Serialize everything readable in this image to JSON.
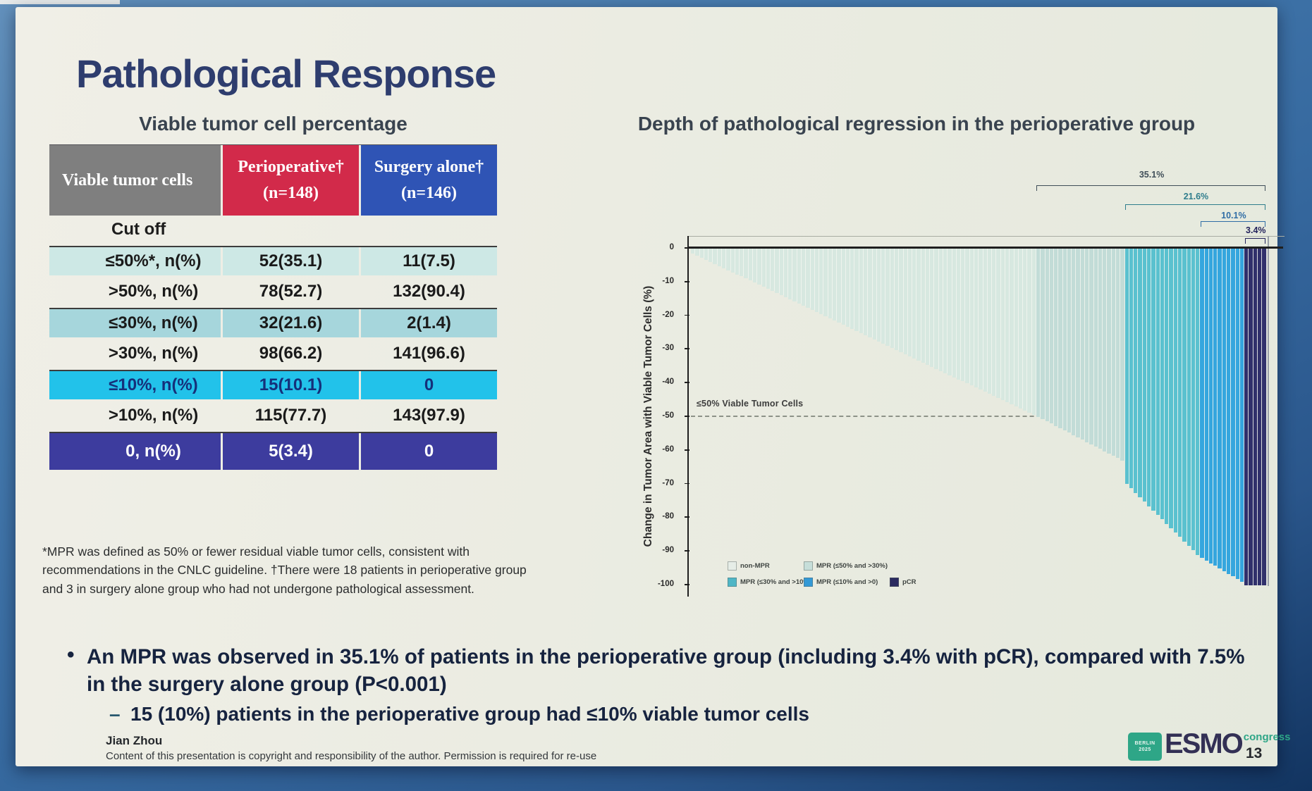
{
  "slide": {
    "title": "Pathological Response",
    "page_number": "13",
    "author": "Jian Zhou",
    "copyright_line": "Content of this presentation is copyright and responsibility of the author. Permission is required for re-use",
    "footnote": "*MPR was defined as 50% or fewer residual viable tumor cells, consistent with recommendations in the CNLC guideline. †There were 18 patients in perioperative group and 3 in surgery alone group who had not undergone pathological assessment.",
    "bullet_marker": "•",
    "sub_bullet_marker": "–",
    "bullet_main": "An MPR was observed in 35.1% of patients in the perioperative group (including 3.4% with pCR), compared with 7.5% in the surgery alone group (P<0.001)",
    "sub_bullet": "15 (10%) patients in the perioperative group had ≤10% viable tumor cells",
    "logo": {
      "badge_line1": "BERLIN",
      "badge_line2": "2025",
      "brand": "ESMO",
      "suffix": "congress"
    }
  },
  "table": {
    "title": "Viable tumor cell percentage",
    "section_label": "Cut off",
    "columns": [
      {
        "label": "Viable tumor cells",
        "sub": "",
        "bg": "#7f7f7f"
      },
      {
        "label": "Perioperative†",
        "sub": "(n=148)",
        "bg": "#d22a4a"
      },
      {
        "label": "Surgery alone†",
        "sub": "(n=146)",
        "bg": "#2f54b5"
      }
    ],
    "rows": [
      {
        "label": "≤50%*, n(%)",
        "perioperative": "52(35.1)",
        "surgery": "11(7.5)",
        "bg": "#cde8e5",
        "fg": "#1a1a1a",
        "line_above": true
      },
      {
        "label": ">50%, n(%)",
        "perioperative": "78(52.7)",
        "surgery": "132(90.4)",
        "bg": "",
        "fg": "#1a1a1a",
        "line_above": false
      },
      {
        "label": "≤30%, n(%)",
        "perioperative": "32(21.6)",
        "surgery": "2(1.4)",
        "bg": "#a6d6dc",
        "fg": "#1a1a1a",
        "line_above": true
      },
      {
        "label": ">30%, n(%)",
        "perioperative": "98(66.2)",
        "surgery": "141(96.6)",
        "bg": "",
        "fg": "#1a1a1a",
        "line_above": false
      },
      {
        "label": "≤10%, n(%)",
        "perioperative": "15(10.1)",
        "surgery": "0",
        "bg": "#22c2ea",
        "fg": "#15307a",
        "line_above": true
      },
      {
        "label": ">10%, n(%)",
        "perioperative": "115(77.7)",
        "surgery": "143(97.9)",
        "bg": "",
        "fg": "#1a1a1a",
        "line_above": false
      },
      {
        "label": "0, n(%)",
        "perioperative": "5(3.4)",
        "surgery": "0",
        "bg": "#3d3c9e",
        "fg": "#ffffff",
        "line_above": true,
        "tall": true
      }
    ]
  },
  "chart_data": {
    "type": "bar",
    "subtype": "waterfall",
    "title": "Depth of pathological regression in the perioperative group",
    "ylabel": "Change in Tumor Area with Viable Tumor Cells (%)",
    "ylim": [
      -100,
      0
    ],
    "yticks": [
      "0",
      "-10",
      "-20",
      "-30",
      "-40",
      "-50",
      "-60",
      "-70",
      "-80",
      "-90",
      "-100"
    ],
    "threshold": {
      "value": -50,
      "label": "≤50% Viable Tumor Cells"
    },
    "total_bars": 130,
    "grid": false,
    "legend_position": "bottom-left-inside",
    "groups": [
      {
        "name": "non-MPR",
        "count": 78,
        "from": -1.5,
        "to": -49.5,
        "color": "#d7e8e0"
      },
      {
        "name": "MPR (≤50% and >30%)",
        "count": 20,
        "from": -50,
        "to": -63,
        "color": "#c2dcd7"
      },
      {
        "name": "MPR (≤30% and >10%)",
        "count": 17,
        "from": -70,
        "to": -91,
        "color": "#5ac1cf"
      },
      {
        "name": "MPR (≤10% and >0)",
        "count": 10,
        "from": -92,
        "to": -99,
        "color": "#35a6de"
      },
      {
        "name": "pCR",
        "count": 5,
        "from": -100,
        "to": -100,
        "color": "#30306b"
      }
    ],
    "legend": [
      {
        "label": "non-MPR",
        "color": "#e6ede7"
      },
      {
        "label": "MPR (≤50% and >30%)",
        "color": "#c6ded9"
      },
      {
        "label": "MPR (≤30% and >10%)",
        "color": "#4fb6c6"
      },
      {
        "label": "MPR (≤10% and >0)",
        "color": "#3399d6"
      },
      {
        "label": "pCR",
        "color": "#2b2b60"
      }
    ],
    "annotations": [
      {
        "label": "35.1%",
        "from_bar": 78,
        "to_bar": 130,
        "color": "#3f4e58"
      },
      {
        "label": "21.6%",
        "from_bar": 98,
        "to_bar": 130,
        "color": "#2e7d8c"
      },
      {
        "label": "10.1%",
        "from_bar": 115,
        "to_bar": 130,
        "color": "#2f6da5"
      },
      {
        "label": "3.4%",
        "from_bar": 125,
        "to_bar": 130,
        "color": "#23235c"
      }
    ]
  }
}
